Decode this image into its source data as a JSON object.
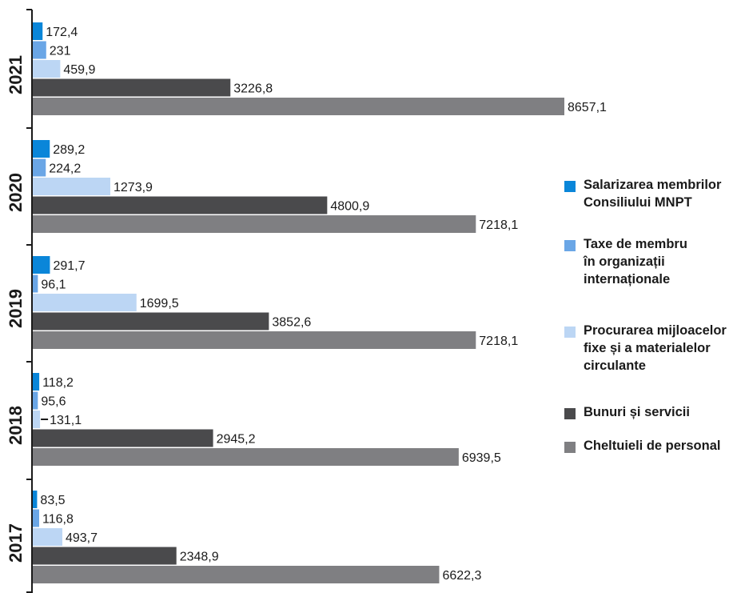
{
  "chart_data": {
    "type": "bar",
    "orientation": "horizontal",
    "categories": [
      "2021",
      "2020",
      "2019",
      "2018",
      "2017"
    ],
    "series": [
      {
        "name": "Salarizarea membrilor Consiliului MNPT",
        "color": "#0a86d9",
        "values": [
          172.4,
          289.2,
          291.7,
          118.2,
          83.5
        ],
        "labels": [
          "172,4",
          "289,2",
          "291,7",
          "118,2",
          "83,5"
        ]
      },
      {
        "name": "Taxe de membru în organizații internaționale",
        "color": "#6aa6e6",
        "values": [
          231,
          224.2,
          96.1,
          95.6,
          116.8
        ],
        "labels": [
          "231",
          "224,2",
          "96,1",
          "95,6",
          "116,8"
        ]
      },
      {
        "name": "Procurarea mijloacelor fixe și a materialelor circulante",
        "color": "#bcd6f4",
        "values": [
          459.9,
          1273.9,
          1699.5,
          131.1,
          493.7
        ],
        "labels": [
          "459,9",
          "1273,9",
          "1699,5",
          "131,1",
          "493,7"
        ]
      },
      {
        "name": "Bunuri și servicii",
        "color": "#4a4a4c",
        "values": [
          3226.8,
          4800.9,
          3852.6,
          2945.2,
          2348.9
        ],
        "labels": [
          "3226,8",
          "4800,9",
          "3852,6",
          "2945,2",
          "2348,9"
        ]
      },
      {
        "name": "Cheltuieli de personal",
        "color": "#7f7f82",
        "values": [
          8657.1,
          7218.1,
          7218.1,
          6939.5,
          6622.3
        ],
        "labels": [
          "8657,1",
          "7218,1",
          "7218,1",
          "6939,5",
          "6622,3"
        ]
      }
    ],
    "legend_position": "right",
    "grid": false
  },
  "legend": [
    {
      "lines": [
        "Salarizarea membrilor",
        "Consiliului MNPT"
      ],
      "color": "#0a86d9"
    },
    {
      "lines": [
        "Taxe de membru",
        "în organizații",
        "internaționale"
      ],
      "color": "#6aa6e6"
    },
    {
      "lines": [
        "Procurarea mijloacelor",
        "fixe și a materialelor",
        "circulante"
      ],
      "color": "#bcd6f4"
    },
    {
      "lines": [
        "Bunuri și servicii"
      ],
      "color": "#4a4a4c"
    },
    {
      "lines": [
        "Cheltuieli de personal"
      ],
      "color": "#7f7f82"
    }
  ]
}
